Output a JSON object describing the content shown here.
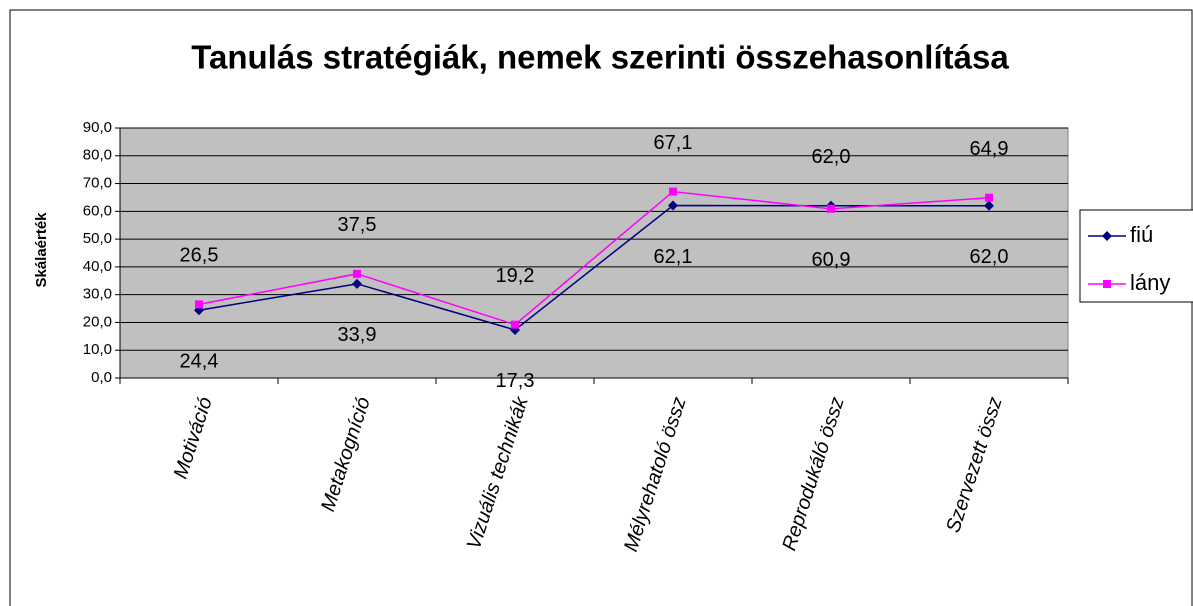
{
  "chart_data": {
    "type": "line",
    "title": "Tanulás stratégiák, nemek szerinti összehasonlítása",
    "ylabel": "Skálaérték",
    "categories": [
      "Motiváció",
      "Metakogníció",
      "Vizuális technikák",
      "Mélyrehatoló össz",
      "Reprodukáló össz",
      "Szervezett össz"
    ],
    "series": [
      {
        "name": "fiú",
        "color": "#000080",
        "marker": "diamond",
        "values": [
          24.4,
          33.9,
          17.3,
          62.1,
          62.0,
          62.0
        ],
        "value_labels": [
          "24,4",
          "33,9",
          "17,3",
          "62,1",
          "62,0",
          "62,0"
        ]
      },
      {
        "name": "lány",
        "color": "#ff00ff",
        "marker": "square",
        "values": [
          26.5,
          37.5,
          19.2,
          67.1,
          60.9,
          64.9
        ],
        "value_labels": [
          "26,5",
          "37,5",
          "19,2",
          "67,1",
          "60,9",
          "64,9"
        ]
      }
    ],
    "ylim": [
      0,
      90
    ],
    "yticks": [
      {
        "value": 0,
        "label": "0,0"
      },
      {
        "value": 10,
        "label": "10,0"
      },
      {
        "value": 20,
        "label": "20,0"
      },
      {
        "value": 30,
        "label": "30,0"
      },
      {
        "value": 40,
        "label": "40,0"
      },
      {
        "value": 50,
        "label": "50,0"
      },
      {
        "value": 60,
        "label": "60,0"
      },
      {
        "value": 70,
        "label": "70,0"
      },
      {
        "value": 80,
        "label": "80,0"
      },
      {
        "value": 90,
        "label": "90,0"
      }
    ],
    "grid": true,
    "plot_background": "#c0c0c0",
    "legend": "right"
  }
}
